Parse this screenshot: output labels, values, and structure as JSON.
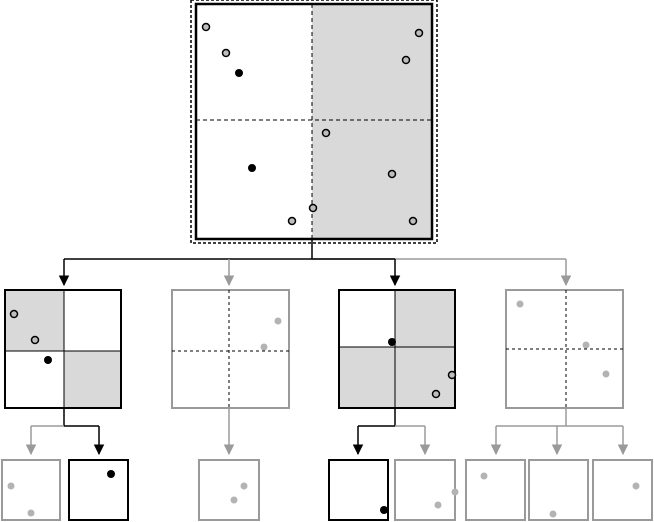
{
  "colors": {
    "background": "#ffffff",
    "active_stroke": "#000000",
    "inactive_stroke": "#9a9a9a",
    "shade": "#d9d9d9",
    "point_filled": "#000000",
    "point_hollow_fill": "#bdbdbd",
    "point_inactive": "#b3b3b3"
  },
  "diagram": {
    "root": {
      "label": "",
      "shaded_quadrants": [
        "top-right",
        "bottom-right"
      ],
      "points_selected": 2,
      "points_other": 10
    },
    "level1": [
      {
        "state": "active",
        "shaded_quadrants": [
          "top-left",
          "bottom-right"
        ],
        "points": 3
      },
      {
        "state": "inactive",
        "shaded_quadrants": [],
        "points": 2
      },
      {
        "state": "active",
        "shaded_quadrants": [
          "bottom-left",
          "bottom-right"
        ],
        "points": 3
      },
      {
        "state": "inactive",
        "shaded_quadrants": [],
        "points": 3
      }
    ],
    "level2": [
      {
        "state": "inactive",
        "points": 2
      },
      {
        "state": "active",
        "points": 1
      },
      {
        "state": "inactive",
        "points": 2
      },
      {
        "state": "active",
        "points": 1
      },
      {
        "state": "inactive",
        "points": 2
      },
      {
        "state": "inactive",
        "points": 1
      },
      {
        "state": "inactive",
        "points": 1
      },
      {
        "state": "inactive",
        "points": 1
      }
    ]
  }
}
